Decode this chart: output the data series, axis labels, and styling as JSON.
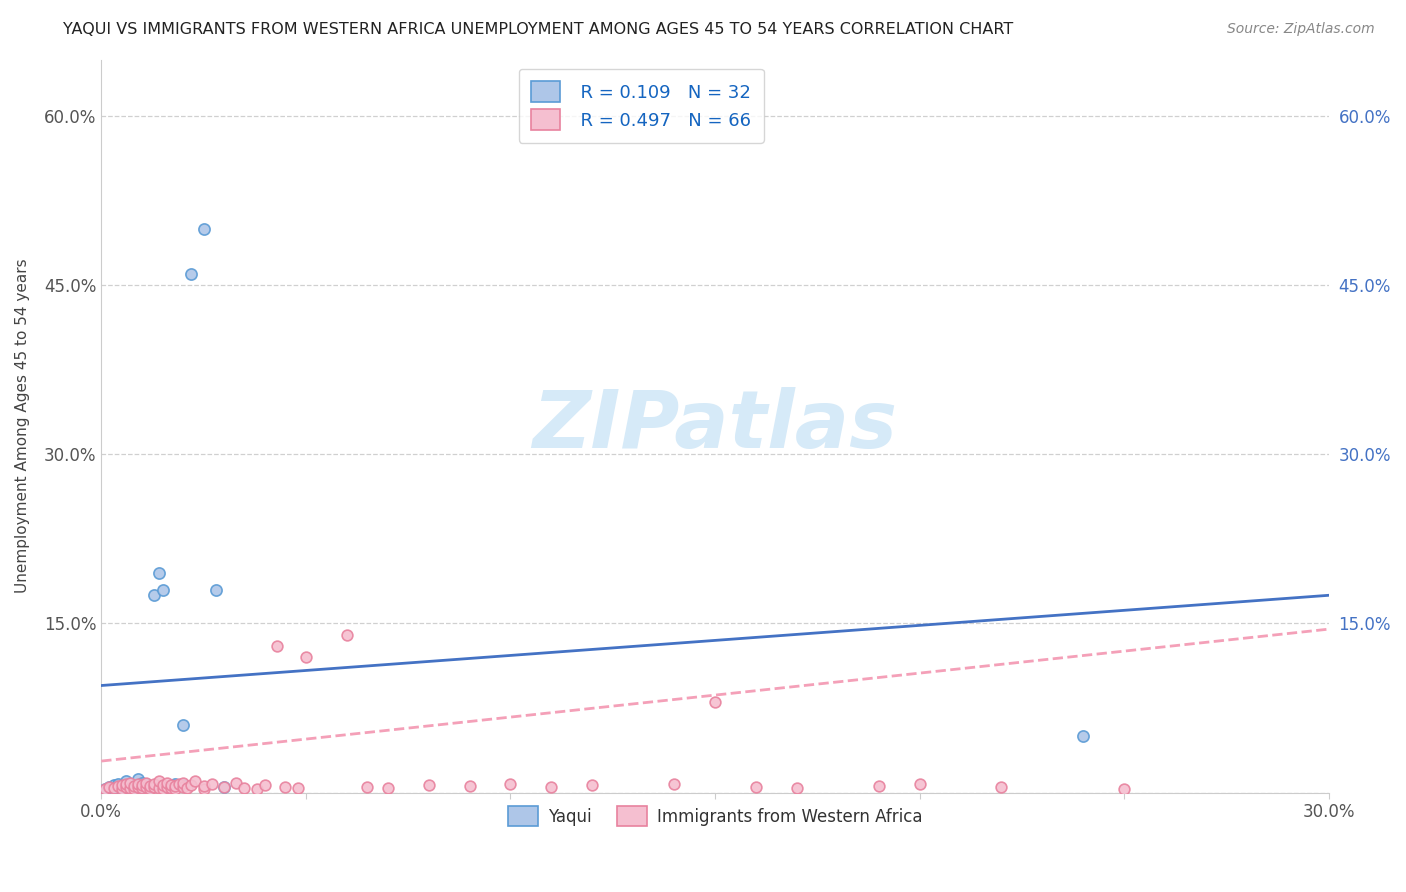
{
  "title": "YAQUI VS IMMIGRANTS FROM WESTERN AFRICA UNEMPLOYMENT AMONG AGES 45 TO 54 YEARS CORRELATION CHART",
  "source": "Source: ZipAtlas.com",
  "ylabel": "Unemployment Among Ages 45 to 54 years",
  "xlim": [
    0.0,
    0.3
  ],
  "ylim": [
    0.0,
    0.65
  ],
  "xtick_positions": [
    0.0,
    0.05,
    0.1,
    0.15,
    0.2,
    0.25,
    0.3
  ],
  "xtick_labels": [
    "0.0%",
    "",
    "",
    "",
    "",
    "",
    "30.0%"
  ],
  "ytick_positions": [
    0.0,
    0.15,
    0.3,
    0.45,
    0.6
  ],
  "ytick_labels_left": [
    "",
    "15.0%",
    "30.0%",
    "45.0%",
    "60.0%"
  ],
  "ytick_labels_right": [
    "",
    "15.0%",
    "30.0%",
    "45.0%",
    "60.0%"
  ],
  "yaqui_color": "#aec6e8",
  "yaqui_edge": "#5b9bd5",
  "africa_color": "#f5bfd0",
  "africa_edge": "#e8829e",
  "line_yaqui_color": "#4472c4",
  "line_africa_color": "#f4a0b8",
  "line_yaqui_x0": 0.0,
  "line_yaqui_y0": 0.095,
  "line_yaqui_x1": 0.3,
  "line_yaqui_y1": 0.175,
  "line_africa_x0": 0.0,
  "line_africa_y0": 0.028,
  "line_africa_x1": 0.3,
  "line_africa_y1": 0.145,
  "R_yaqui": "0.109",
  "N_yaqui": "32",
  "R_africa": "0.497",
  "N_africa": "66",
  "watermark": "ZIPatlas",
  "watermark_color": "#d6eaf8",
  "legend_yaqui": "Yaqui",
  "legend_africa": "Immigrants from Western Africa",
  "yaqui_x": [
    0.001,
    0.002,
    0.003,
    0.003,
    0.004,
    0.004,
    0.005,
    0.005,
    0.006,
    0.006,
    0.007,
    0.007,
    0.008,
    0.008,
    0.009,
    0.009,
    0.01,
    0.01,
    0.011,
    0.012,
    0.013,
    0.014,
    0.015,
    0.016,
    0.018,
    0.02,
    0.022,
    0.025,
    0.028,
    0.03,
    0.24,
    0.02
  ],
  "yaqui_y": [
    0.003,
    0.005,
    0.002,
    0.007,
    0.004,
    0.008,
    0.003,
    0.006,
    0.005,
    0.01,
    0.003,
    0.008,
    0.006,
    0.004,
    0.007,
    0.012,
    0.005,
    0.009,
    0.008,
    0.005,
    0.175,
    0.195,
    0.18,
    0.005,
    0.008,
    0.007,
    0.46,
    0.5,
    0.18,
    0.005,
    0.05,
    0.06
  ],
  "africa_x": [
    0.001,
    0.002,
    0.003,
    0.004,
    0.005,
    0.005,
    0.006,
    0.006,
    0.007,
    0.007,
    0.008,
    0.008,
    0.009,
    0.009,
    0.01,
    0.01,
    0.011,
    0.011,
    0.012,
    0.012,
    0.013,
    0.013,
    0.014,
    0.014,
    0.015,
    0.015,
    0.016,
    0.016,
    0.017,
    0.017,
    0.018,
    0.018,
    0.019,
    0.02,
    0.02,
    0.021,
    0.022,
    0.023,
    0.025,
    0.025,
    0.027,
    0.03,
    0.033,
    0.035,
    0.038,
    0.04,
    0.043,
    0.045,
    0.048,
    0.05,
    0.06,
    0.065,
    0.07,
    0.08,
    0.09,
    0.1,
    0.11,
    0.12,
    0.14,
    0.15,
    0.16,
    0.17,
    0.19,
    0.2,
    0.22,
    0.25
  ],
  "africa_y": [
    0.003,
    0.005,
    0.004,
    0.006,
    0.003,
    0.007,
    0.005,
    0.008,
    0.004,
    0.009,
    0.003,
    0.006,
    0.005,
    0.008,
    0.004,
    0.007,
    0.005,
    0.009,
    0.003,
    0.006,
    0.005,
    0.008,
    0.004,
    0.01,
    0.003,
    0.007,
    0.005,
    0.009,
    0.004,
    0.007,
    0.003,
    0.006,
    0.008,
    0.005,
    0.009,
    0.004,
    0.007,
    0.01,
    0.003,
    0.006,
    0.008,
    0.005,
    0.009,
    0.004,
    0.003,
    0.007,
    0.13,
    0.005,
    0.004,
    0.12,
    0.14,
    0.005,
    0.004,
    0.007,
    0.006,
    0.008,
    0.005,
    0.007,
    0.008,
    0.08,
    0.005,
    0.004,
    0.006,
    0.008,
    0.005,
    0.003
  ]
}
